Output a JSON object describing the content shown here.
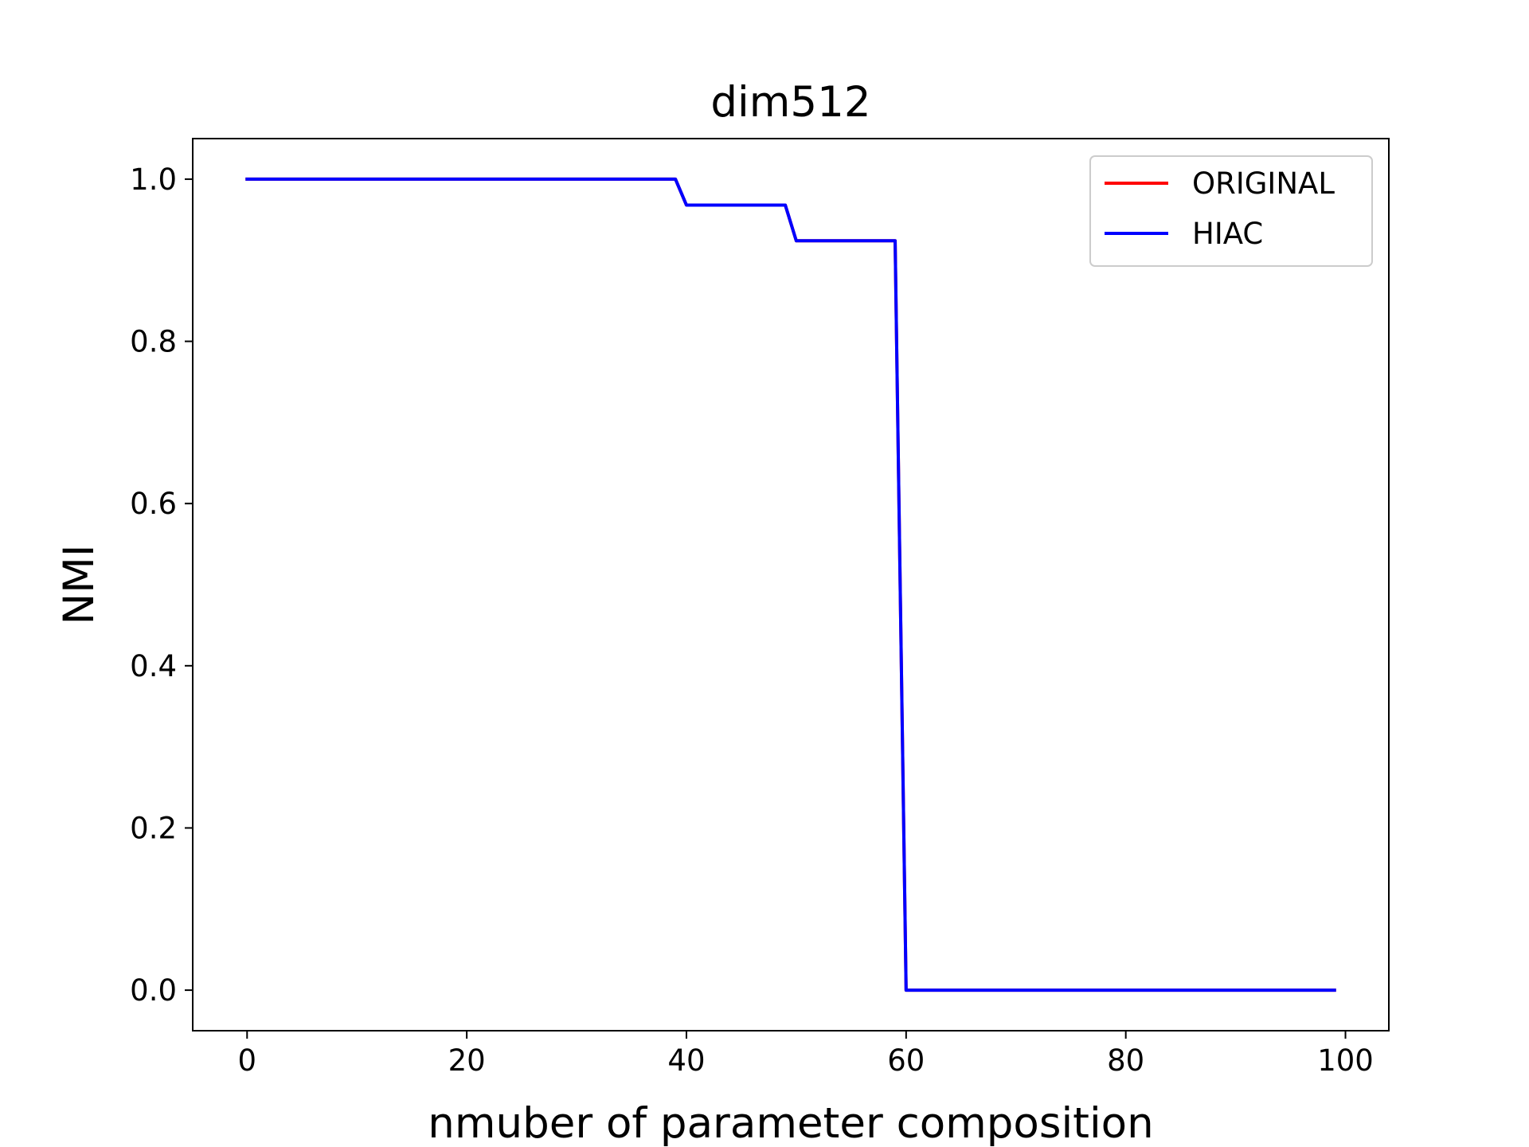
{
  "chart_data": {
    "type": "line",
    "title": "dim512",
    "xlabel": "nmuber of parameter composition",
    "ylabel": "NMI",
    "xlim": [
      -4.95,
      103.95
    ],
    "ylim": [
      -0.05,
      1.05
    ],
    "xticks": [
      0,
      20,
      40,
      60,
      80,
      100
    ],
    "yticks": [
      0.0,
      0.2,
      0.4,
      0.6,
      0.8,
      1.0
    ],
    "xtick_labels": [
      "0",
      "20",
      "40",
      "60",
      "80",
      "100"
    ],
    "ytick_labels": [
      "0.0",
      "0.2",
      "0.4",
      "0.6",
      "0.8",
      "1.0"
    ],
    "grid": false,
    "legend_position": "top-right",
    "series": [
      {
        "name": "ORIGINAL",
        "color": "#ff0000",
        "x": [
          0,
          39,
          40,
          49,
          50,
          59,
          60,
          99
        ],
        "y": [
          1.0,
          1.0,
          0.968,
          0.968,
          0.924,
          0.924,
          0.0,
          0.0
        ]
      },
      {
        "name": "HIAC",
        "color": "#0000ff",
        "x": [
          0,
          39,
          40,
          49,
          50,
          59,
          60,
          99
        ],
        "y": [
          1.0,
          1.0,
          0.968,
          0.968,
          0.924,
          0.924,
          0.0,
          0.0
        ]
      }
    ]
  }
}
